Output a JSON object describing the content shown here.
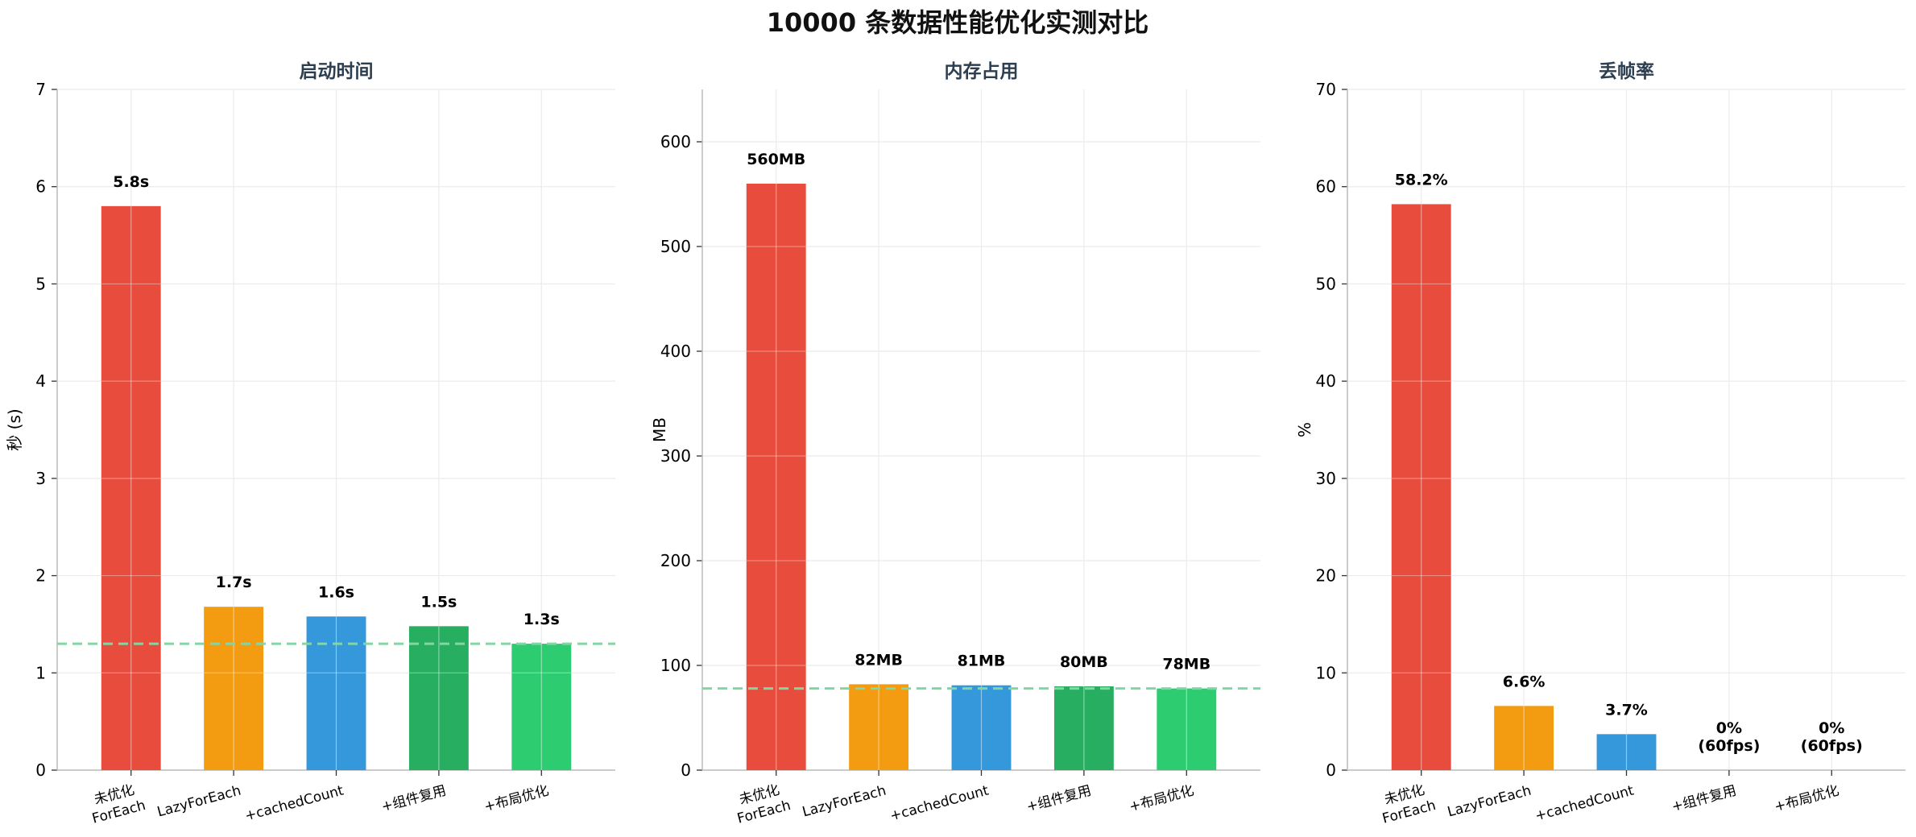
{
  "title": "10000 条数据性能优化实测对比",
  "chart_data": [
    {
      "type": "bar",
      "title": "启动时间",
      "xlabel": "",
      "ylabel": "秒 (s)",
      "categories": [
        "未优化\nForEach",
        "LazyForEach",
        "+cachedCount",
        "+组件复用",
        "+布局优化"
      ],
      "values": [
        5.8,
        1.68,
        1.58,
        1.48,
        1.3
      ],
      "data_labels": [
        "5.8s",
        "1.7s",
        "1.6s",
        "1.5s",
        "1.3s"
      ],
      "colors": [
        "#e74c3c",
        "#f39c12",
        "#3498db",
        "#27ae60",
        "#2ecc71"
      ],
      "ylim": [
        0,
        7
      ],
      "yticks": [
        0,
        1,
        2,
        3,
        4,
        5,
        6,
        7
      ],
      "reference_line": 1.3,
      "grid": true
    },
    {
      "type": "bar",
      "title": "内存占用",
      "xlabel": "",
      "ylabel": "MB",
      "categories": [
        "未优化\nForEach",
        "LazyForEach",
        "+cachedCount",
        "+组件复用",
        "+布局优化"
      ],
      "values": [
        560,
        82,
        81,
        80,
        78
      ],
      "data_labels": [
        "560MB",
        "82MB",
        "81MB",
        "80MB",
        "78MB"
      ],
      "colors": [
        "#e74c3c",
        "#f39c12",
        "#3498db",
        "#27ae60",
        "#2ecc71"
      ],
      "ylim": [
        0,
        650
      ],
      "yticks": [
        0,
        100,
        200,
        300,
        400,
        500,
        600
      ],
      "reference_line": 78,
      "grid": true
    },
    {
      "type": "bar",
      "title": "丢帧率",
      "xlabel": "",
      "ylabel": "%",
      "categories": [
        "未优化\nForEach",
        "LazyForEach",
        "+cachedCount",
        "+组件复用",
        "+布局优化"
      ],
      "values": [
        58.2,
        6.6,
        3.7,
        0,
        0
      ],
      "data_labels": [
        "58.2%",
        "6.6%",
        "3.7%",
        "0%\n(60fps)",
        "0%\n(60fps)"
      ],
      "colors": [
        "#e74c3c",
        "#f39c12",
        "#3498db",
        "#27ae60",
        "#2ecc71"
      ],
      "ylim": [
        0,
        70
      ],
      "yticks": [
        0,
        10,
        20,
        30,
        40,
        50,
        60,
        70
      ],
      "grid": true
    }
  ]
}
